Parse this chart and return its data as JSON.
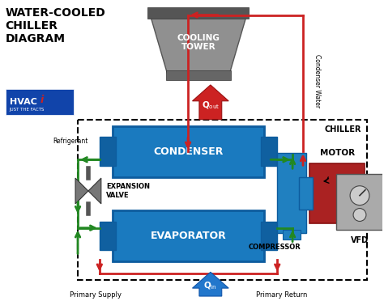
{
  "title": "WATER-COOLED\nCHILLER\nDIAGRAM",
  "bg_color": "#ffffff",
  "blue": "#1a7abf",
  "blue_dark": "#0d5c9e",
  "blue_tab": "#1060a0",
  "gray_tower": "#888888",
  "gray_tower_dark": "#666666",
  "red": "#cc2222",
  "green": "#228822",
  "motor_red": "#aa2222",
  "dark_gray": "#555555",
  "white": "#ffffff",
  "black": "#000000",
  "hvac_blue": "#1144aa",
  "vfd_gray": "#999999",
  "comp_blue": "#2080c0",
  "qin_blue": "#2277cc",
  "chiller_label": "CHILLER",
  "condenser_water_label": "Condenser Water",
  "refrigerant_label": "Refrigerant",
  "compressor_label": "COMPRESSOR",
  "motor_label": "MOTOR",
  "expansion_label": "EXPANSION\nVALVE",
  "vfd_label": "VFD",
  "qout_label": "Q",
  "qin_label": "Q",
  "primary_supply": "Primary Supply",
  "primary_return": "Primary Return",
  "cooling_tower_label": "COOLING\nTOWER"
}
